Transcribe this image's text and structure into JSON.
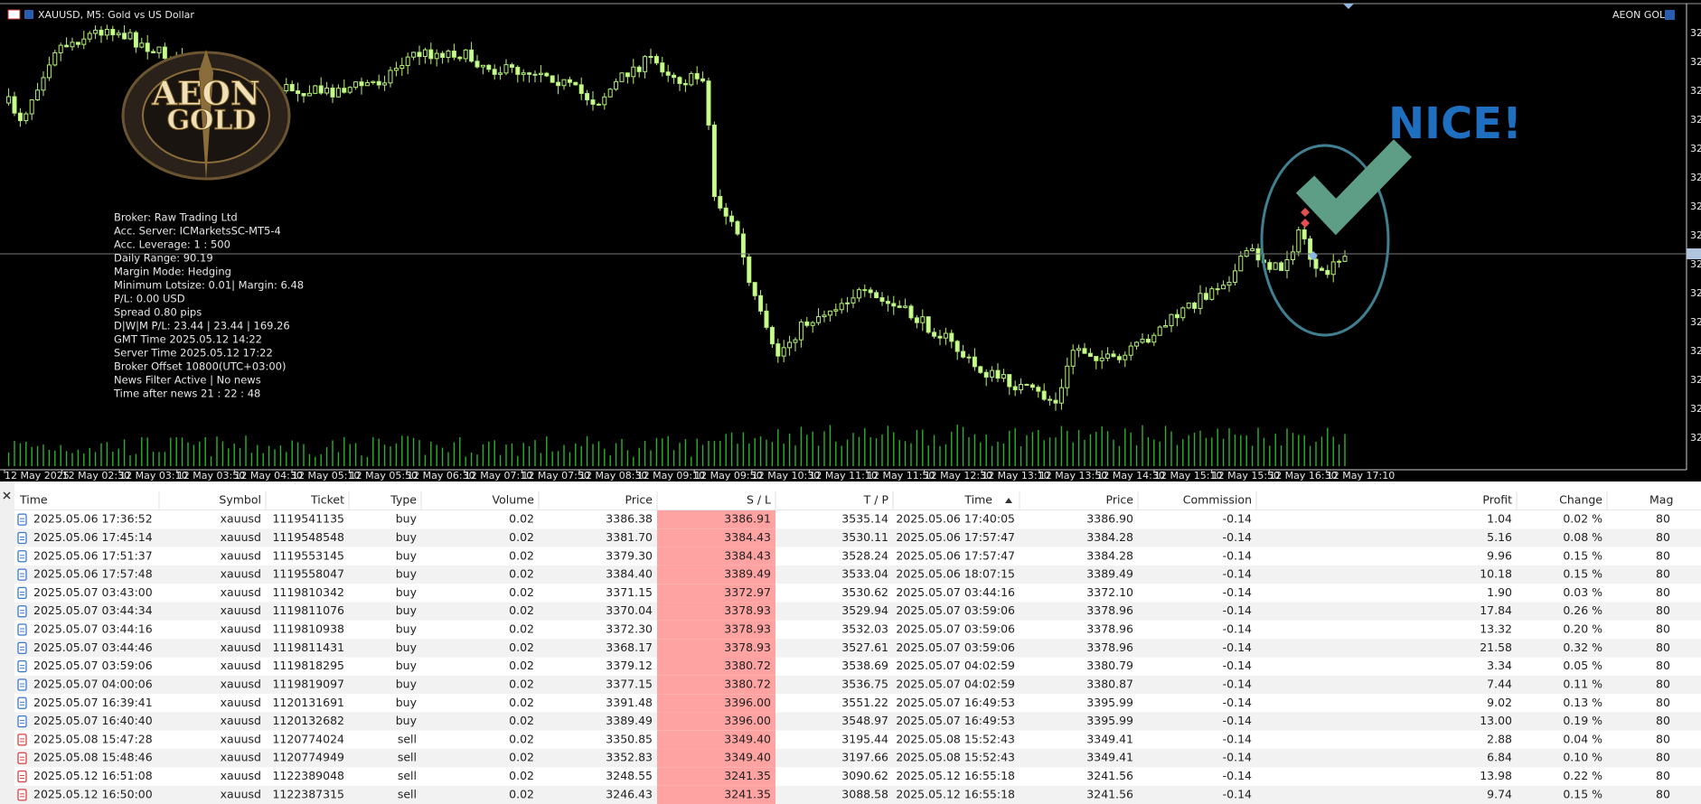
{
  "header": {
    "title": "XAUUSD, M5: Gold vs US Dollar",
    "brand": "AEON GOLD"
  },
  "logo": [
    "AEON",
    "GOLD"
  ],
  "info_panel": [
    "Broker:  Raw Trading Ltd",
    "Acc. Server:  ICMarketsSC-MT5-4",
    "Acc. Leverage:  1 : 500",
    "Daily Range:  90.19",
    "Margin Mode:  Hedging",
    "Minimum Lotsize: 0.01| Margin: 6.48",
    "P/L: 0.00 USD",
    "Spread 0.80 pips",
    "D|W|M P/L: 23.44 | 23.44 | 169.26",
    "GMT Time 2025.05.12 14:22",
    "Server Time 2025.05.12 17:22",
    "Broker Offset 10800(UTC+03:00)",
    "News Filter Active | No news",
    "Time after news 21 : 22 : 48"
  ],
  "annotation": "NICE!",
  "price_axis": [
    "32",
    "32",
    "32",
    "32",
    "32",
    "32",
    "32",
    "32",
    "32",
    "32",
    "32",
    "32",
    "32",
    "32",
    "32"
  ],
  "time_axis": [
    "12 May 2025",
    "12 May 02:30",
    "12 May 03:10",
    "12 May 03:50",
    "12 May 04:30",
    "12 May 05:10",
    "12 May 05:50",
    "12 May 06:30",
    "12 May 07:10",
    "12 May 07:50",
    "12 May 08:30",
    "12 May 09:10",
    "12 May 09:50",
    "12 May 10:30",
    "12 May 11:10",
    "12 May 11:50",
    "12 May 12:30",
    "12 May 13:10",
    "12 May 13:50",
    "12 May 14:30",
    "12 May 15:10",
    "12 May 15:50",
    "12 May 16:30",
    "12 May 17:10"
  ],
  "table": {
    "columns": [
      "Time",
      "Symbol",
      "Ticket",
      "Type",
      "Volume",
      "Price",
      "S / L",
      "T / P",
      "Time",
      "Price",
      "Commission",
      "Profit",
      "Change",
      "Mag"
    ],
    "rows": [
      {
        "icon": "#3a78c8",
        "cells": [
          "2025.05.06 17:36:52",
          "xauusd",
          "1119541135",
          "buy",
          "0.02",
          "3386.38",
          "3386.91",
          "3535.14",
          "2025.05.06 17:40:05",
          "3386.90",
          "-0.14",
          "1.04",
          "0.02 %",
          "80"
        ]
      },
      {
        "icon": "#3a78c8",
        "cells": [
          "2025.05.06 17:45:14",
          "xauusd",
          "1119548548",
          "buy",
          "0.02",
          "3381.70",
          "3384.43",
          "3530.11",
          "2025.05.06 17:57:47",
          "3384.28",
          "-0.14",
          "5.16",
          "0.08 %",
          "80"
        ]
      },
      {
        "icon": "#3a78c8",
        "cells": [
          "2025.05.06 17:51:37",
          "xauusd",
          "1119553145",
          "buy",
          "0.02",
          "3379.30",
          "3384.43",
          "3528.24",
          "2025.05.06 17:57:47",
          "3384.28",
          "-0.14",
          "9.96",
          "0.15 %",
          "80"
        ]
      },
      {
        "icon": "#3a78c8",
        "cells": [
          "2025.05.06 17:57:48",
          "xauusd",
          "1119558047",
          "buy",
          "0.02",
          "3384.40",
          "3389.49",
          "3533.04",
          "2025.05.06 18:07:15",
          "3389.49",
          "-0.14",
          "10.18",
          "0.15 %",
          "80"
        ]
      },
      {
        "icon": "#3a78c8",
        "cells": [
          "2025.05.07 03:43:00",
          "xauusd",
          "1119810342",
          "buy",
          "0.02",
          "3371.15",
          "3372.97",
          "3530.62",
          "2025.05.07 03:44:16",
          "3372.10",
          "-0.14",
          "1.90",
          "0.03 %",
          "80"
        ]
      },
      {
        "icon": "#3a78c8",
        "cells": [
          "2025.05.07 03:44:34",
          "xauusd",
          "1119811076",
          "buy",
          "0.02",
          "3370.04",
          "3378.93",
          "3529.94",
          "2025.05.07 03:59:06",
          "3378.96",
          "-0.14",
          "17.84",
          "0.26 %",
          "80"
        ]
      },
      {
        "icon": "#3a78c8",
        "cells": [
          "2025.05.07 03:44:16",
          "xauusd",
          "1119810938",
          "buy",
          "0.02",
          "3372.30",
          "3378.93",
          "3532.03",
          "2025.05.07 03:59:06",
          "3378.96",
          "-0.14",
          "13.32",
          "0.20 %",
          "80"
        ]
      },
      {
        "icon": "#3a78c8",
        "cells": [
          "2025.05.07 03:44:46",
          "xauusd",
          "1119811431",
          "buy",
          "0.02",
          "3368.17",
          "3378.93",
          "3527.61",
          "2025.05.07 03:59:06",
          "3378.96",
          "-0.14",
          "21.58",
          "0.32 %",
          "80"
        ]
      },
      {
        "icon": "#3a78c8",
        "cells": [
          "2025.05.07 03:59:06",
          "xauusd",
          "1119818295",
          "buy",
          "0.02",
          "3379.12",
          "3380.72",
          "3538.69",
          "2025.05.07 04:02:59",
          "3380.79",
          "-0.14",
          "3.34",
          "0.05 %",
          "80"
        ]
      },
      {
        "icon": "#3a78c8",
        "cells": [
          "2025.05.07 04:00:06",
          "xauusd",
          "1119819097",
          "buy",
          "0.02",
          "3377.15",
          "3380.72",
          "3536.75",
          "2025.05.07 04:02:59",
          "3380.87",
          "-0.14",
          "7.44",
          "0.11 %",
          "80"
        ]
      },
      {
        "icon": "#3a78c8",
        "cells": [
          "2025.05.07 16:39:41",
          "xauusd",
          "1120131691",
          "buy",
          "0.02",
          "3391.48",
          "3396.00",
          "3551.22",
          "2025.05.07 16:49:53",
          "3395.99",
          "-0.14",
          "9.02",
          "0.13 %",
          "80"
        ]
      },
      {
        "icon": "#3a78c8",
        "cells": [
          "2025.05.07 16:40:40",
          "xauusd",
          "1120132682",
          "buy",
          "0.02",
          "3389.49",
          "3396.00",
          "3548.97",
          "2025.05.07 16:49:53",
          "3395.99",
          "-0.14",
          "13.00",
          "0.19 %",
          "80"
        ]
      },
      {
        "icon": "#d84040",
        "cells": [
          "2025.05.08 15:47:28",
          "xauusd",
          "1120774024",
          "sell",
          "0.02",
          "3350.85",
          "3349.40",
          "3195.44",
          "2025.05.08 15:52:43",
          "3349.41",
          "-0.14",
          "2.88",
          "0.04 %",
          "80"
        ]
      },
      {
        "icon": "#d84040",
        "cells": [
          "2025.05.08 15:48:46",
          "xauusd",
          "1120774949",
          "sell",
          "0.02",
          "3352.83",
          "3349.40",
          "3197.66",
          "2025.05.08 15:52:43",
          "3349.41",
          "-0.14",
          "6.84",
          "0.10 %",
          "80"
        ]
      },
      {
        "icon": "#d84040",
        "cells": [
          "2025.05.12 16:51:08",
          "xauusd",
          "1122389048",
          "sell",
          "0.02",
          "3248.55",
          "3241.35",
          "3090.62",
          "2025.05.12 16:55:18",
          "3241.56",
          "-0.14",
          "13.98",
          "0.22 %",
          "80"
        ]
      },
      {
        "icon": "#d84040",
        "cells": [
          "2025.05.12 16:50:00",
          "xauusd",
          "1122387315",
          "sell",
          "0.02",
          "3246.43",
          "3241.35",
          "3088.58",
          "2025.05.12 16:55:18",
          "3241.56",
          "-0.14",
          "9.74",
          "0.15 %",
          "80"
        ]
      }
    ]
  }
}
